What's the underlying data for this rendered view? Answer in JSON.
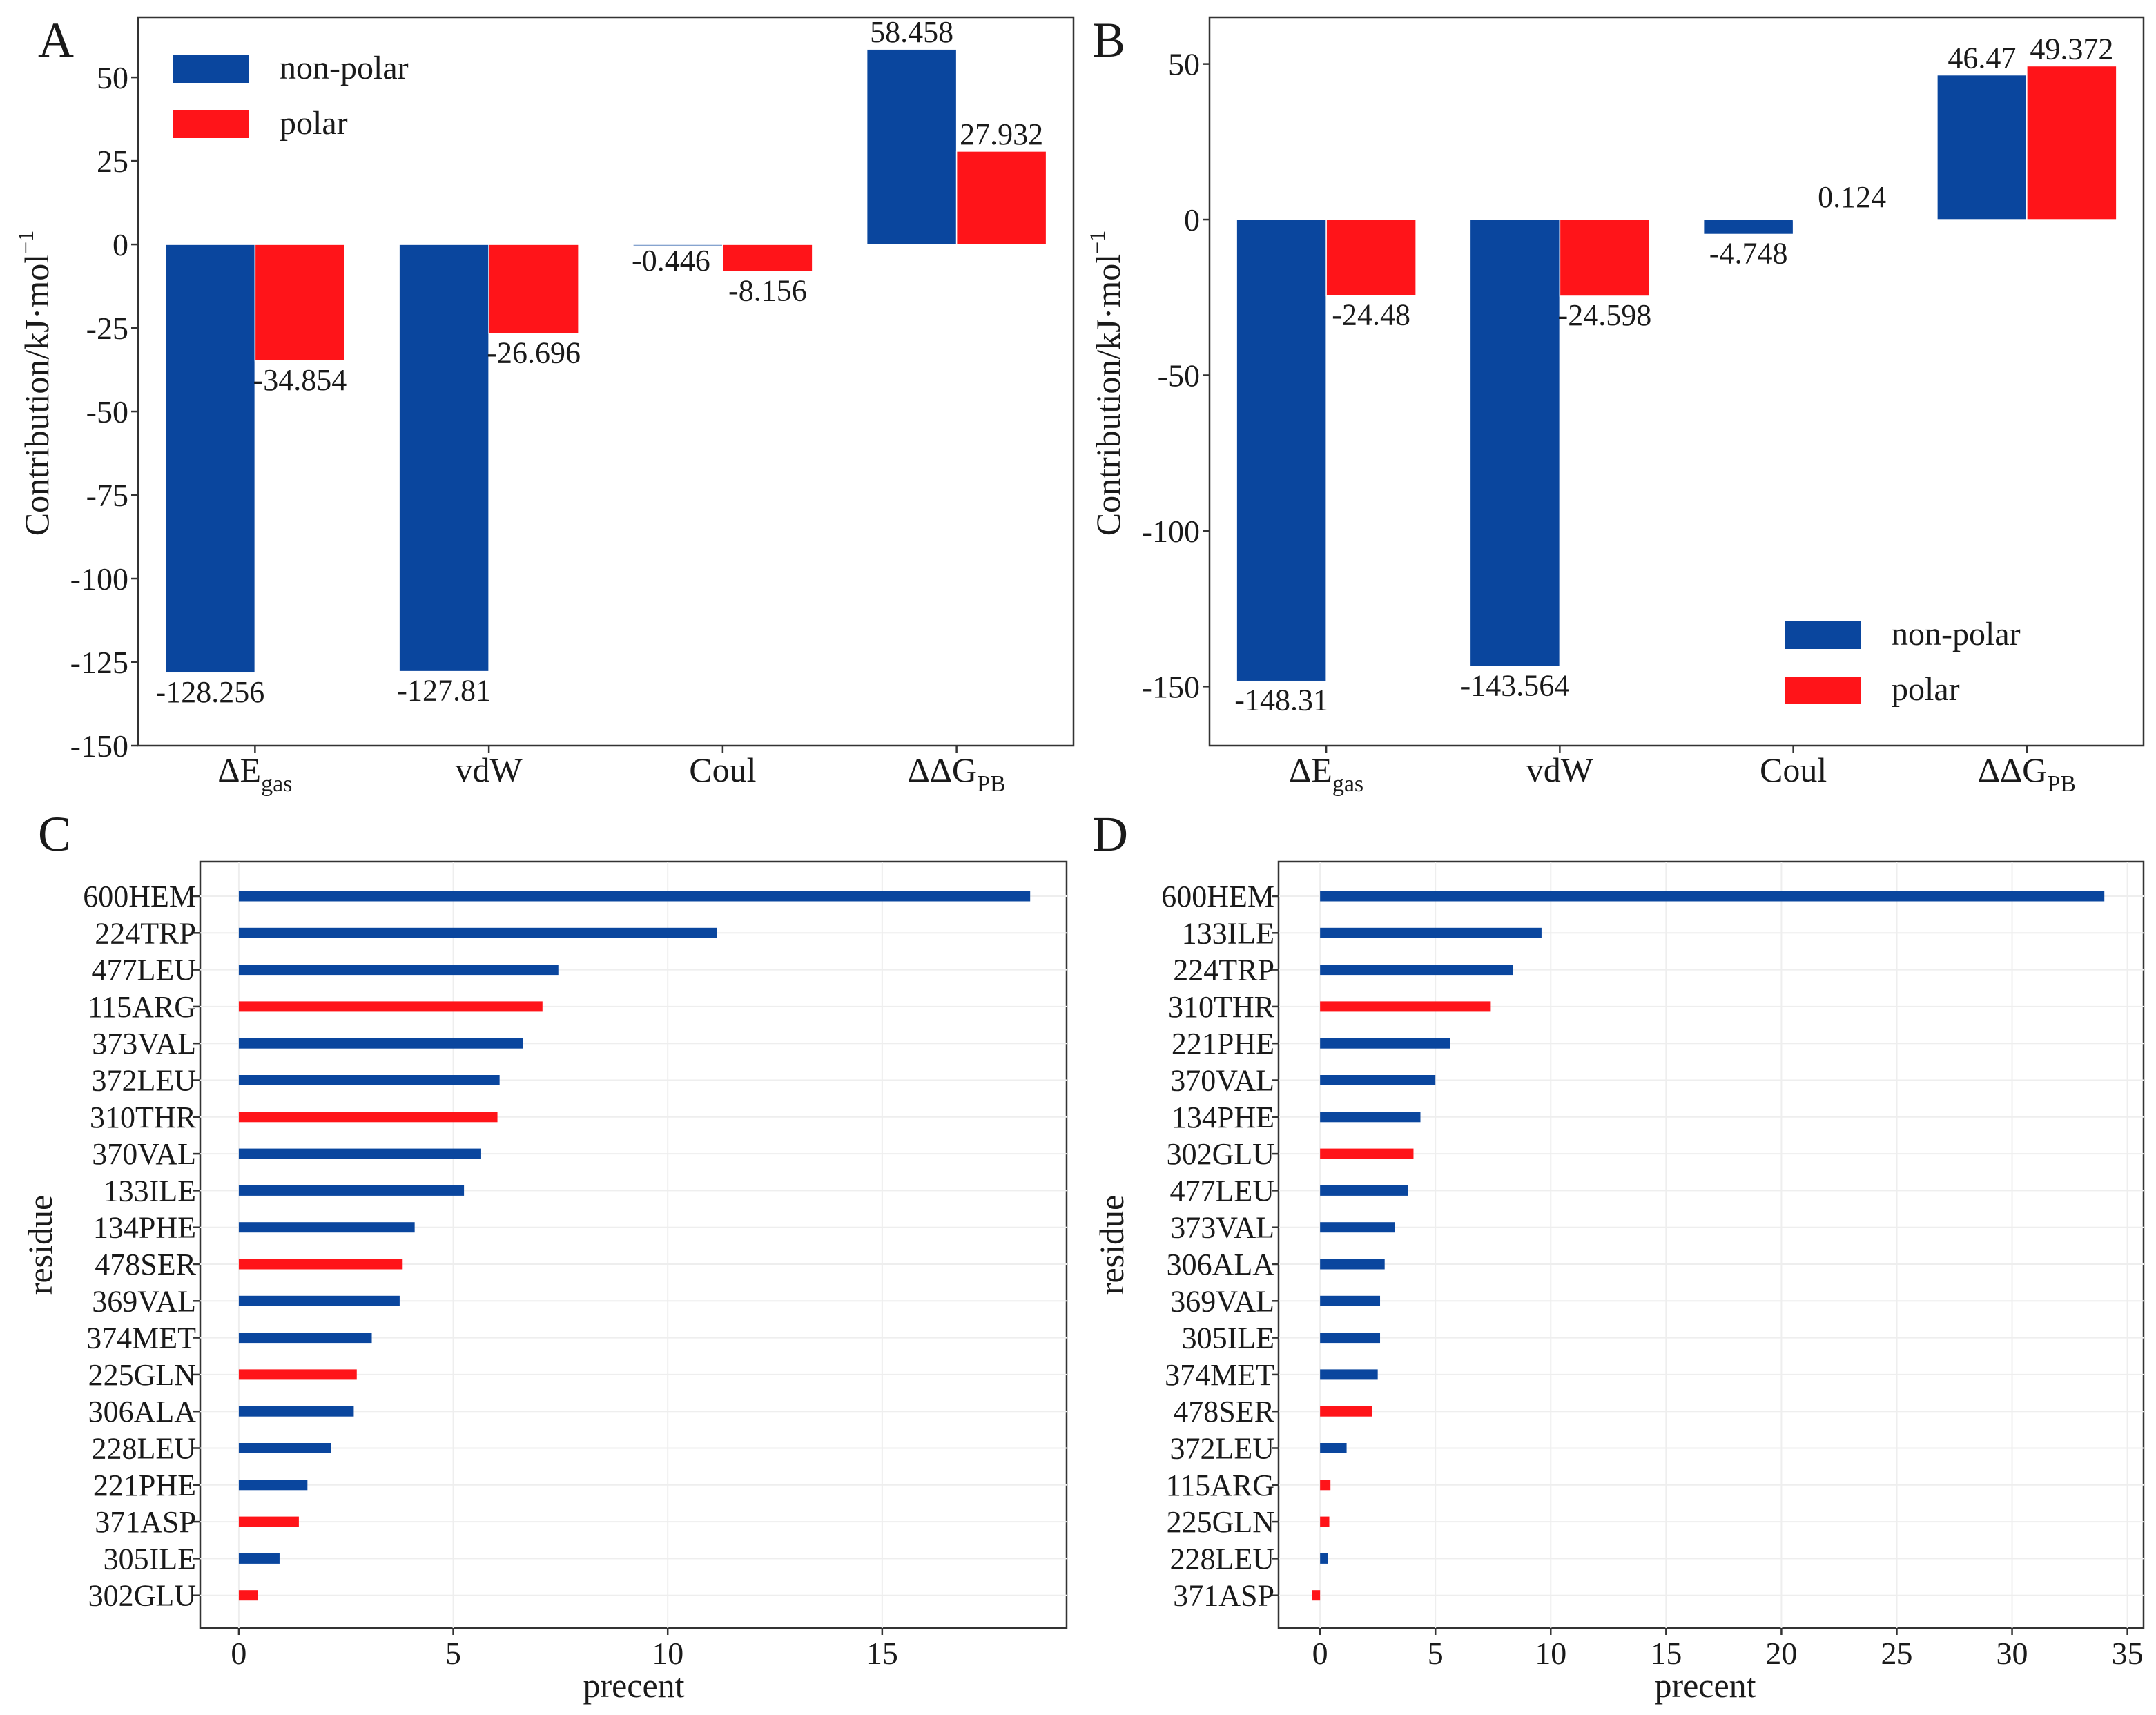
{
  "colors": {
    "non_polar": "#0A469E",
    "polar": "#FF1419"
  },
  "chart_data": [
    {
      "id": "A",
      "type": "bar",
      "panel_label": "A",
      "categories": [
        {
          "main": "ΔE",
          "sub": "gas"
        },
        {
          "main": "vdW",
          "sub": ""
        },
        {
          "main": "Coul",
          "sub": ""
        },
        {
          "main": "ΔΔG",
          "sub": "PB"
        }
      ],
      "series": [
        {
          "name": "non-polar",
          "color_key": "non_polar",
          "values": [
            -128.256,
            -127.81,
            -0.446,
            58.458
          ],
          "labels": [
            "-128.256",
            "-127.81",
            "-0.446",
            "58.458"
          ]
        },
        {
          "name": "polar",
          "color_key": "polar",
          "values": [
            -34.854,
            -26.696,
            -8.156,
            27.932
          ],
          "labels": [
            "-34.854",
            "-26.696",
            "-8.156",
            "27.932"
          ]
        }
      ],
      "ylabel": "Contribution/kJ·mol",
      "ylabel_sup": "−1",
      "ylim": [
        -150,
        68
      ],
      "yticks": [
        50,
        25,
        0,
        -25,
        -50,
        -75,
        -100,
        -125,
        -150
      ],
      "legend": "top-left"
    },
    {
      "id": "B",
      "type": "bar",
      "panel_label": "B",
      "categories": [
        {
          "main": "ΔE",
          "sub": "gas"
        },
        {
          "main": "vdW",
          "sub": ""
        },
        {
          "main": "Coul",
          "sub": ""
        },
        {
          "main": "ΔΔG",
          "sub": "PB"
        }
      ],
      "series": [
        {
          "name": "non-polar",
          "color_key": "non_polar",
          "values": [
            -148.31,
            -143.564,
            -4.748,
            46.47
          ],
          "labels": [
            "-148.31",
            "-143.564",
            "-4.748",
            "46.47"
          ]
        },
        {
          "name": "polar",
          "color_key": "polar",
          "values": [
            -24.48,
            -24.598,
            0.124,
            49.372
          ],
          "labels": [
            "-24.48",
            "-24.598",
            "0.124",
            "49.372"
          ]
        }
      ],
      "ylabel": "Contribution/kJ·mol",
      "ylabel_sup": "−1",
      "ylim": [
        -169,
        65
      ],
      "yticks": [
        50,
        0,
        -50,
        -100,
        -150
      ],
      "legend": "bottom-right"
    },
    {
      "id": "C",
      "type": "bar",
      "orientation": "horizontal",
      "panel_label": "C",
      "xlabel": "precent",
      "ylabel": "residue",
      "xlim": [
        -0.9,
        19.3
      ],
      "xticks": [
        0,
        5,
        10,
        15
      ],
      "residues": [
        "600HEM",
        "224TRP",
        "477LEU",
        "115ARG",
        "373VAL",
        "372LEU",
        "310THR",
        "370VAL",
        "133ILE",
        "134PHE",
        "478SER",
        "369VAL",
        "374MET",
        "225GLN",
        "306ALA",
        "228LEU",
        "221PHE",
        "371ASP",
        "305ILE",
        "302GLU"
      ],
      "values": [
        18.45,
        11.15,
        7.45,
        7.08,
        6.63,
        6.08,
        6.03,
        5.65,
        5.25,
        4.1,
        3.82,
        3.75,
        3.1,
        2.75,
        2.68,
        2.15,
        1.6,
        1.4,
        0.95,
        0.45
      ],
      "class": [
        "non_polar",
        "non_polar",
        "non_polar",
        "polar",
        "non_polar",
        "non_polar",
        "polar",
        "non_polar",
        "non_polar",
        "non_polar",
        "polar",
        "non_polar",
        "non_polar",
        "polar",
        "non_polar",
        "non_polar",
        "non_polar",
        "polar",
        "non_polar",
        "polar"
      ]
    },
    {
      "id": "D",
      "type": "bar",
      "orientation": "horizontal",
      "panel_label": "D",
      "xlabel": "precent",
      "ylabel": "residue",
      "xlim": [
        -1.8,
        35.7
      ],
      "xticks": [
        0,
        5,
        10,
        15,
        20,
        25,
        30,
        35
      ],
      "residues": [
        "600HEM",
        "133ILE",
        "224TRP",
        "310THR",
        "221PHE",
        "370VAL",
        "134PHE",
        "302GLU",
        "477LEU",
        "373VAL",
        "306ALA",
        "369VAL",
        "305ILE",
        "374MET",
        "478SER",
        "372LEU",
        "115ARG",
        "225GLN",
        "228LEU",
        "371ASP"
      ],
      "values": [
        34.0,
        9.6,
        8.35,
        7.4,
        5.65,
        5.0,
        4.35,
        4.05,
        3.8,
        3.25,
        2.8,
        2.6,
        2.6,
        2.5,
        2.25,
        1.15,
        0.45,
        0.4,
        0.35,
        -0.35
      ],
      "class": [
        "non_polar",
        "non_polar",
        "non_polar",
        "polar",
        "non_polar",
        "non_polar",
        "non_polar",
        "polar",
        "non_polar",
        "non_polar",
        "non_polar",
        "non_polar",
        "non_polar",
        "non_polar",
        "polar",
        "non_polar",
        "polar",
        "polar",
        "non_polar",
        "polar"
      ]
    }
  ]
}
